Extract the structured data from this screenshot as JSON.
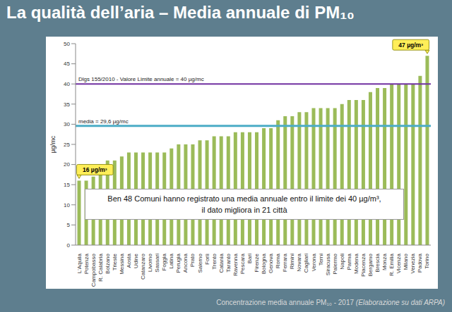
{
  "chart_data": {
    "type": "bar",
    "title": "La qualità dell’aria – Media annuale di PM₁₀",
    "categories": [
      "L'Aquila",
      "Potenza",
      "Campobasso",
      "R. Calabria",
      "Bolzano",
      "Trieste",
      "Messina",
      "Aosta",
      "Udine",
      "Catanzaro",
      "Livorno",
      "Sassari",
      "Foggia",
      "Latina",
      "Perugia",
      "Ancona",
      "Prato",
      "Salerno",
      "Forlì",
      "Trento",
      "Catania",
      "Taranto",
      "Ravenna",
      "Pescara",
      "Bari",
      "Firenze",
      "Bologna",
      "Genova",
      "Roma",
      "Ferrara",
      "Rimini",
      "Novara",
      "Cagliari",
      "Verona",
      "Terni",
      "Siracusa",
      "Palermo",
      "Napoli",
      "Parma",
      "Modena",
      "Piacenza",
      "Bergamo",
      "Brescia",
      "Monza",
      "R. Emilia",
      "Vicenza",
      "Milano",
      "Venezia",
      "Padova",
      "Torino"
    ],
    "values": [
      16,
      16,
      17,
      20,
      21,
      21,
      22,
      23,
      23,
      23,
      23,
      23,
      23,
      24,
      25,
      25,
      25,
      26,
      26,
      27,
      27,
      27,
      28,
      28,
      28,
      28,
      29,
      29,
      31,
      32,
      32,
      33,
      33,
      34,
      34,
      34,
      34,
      35,
      36,
      36,
      36,
      38,
      39,
      39,
      40,
      40,
      40,
      40,
      42,
      47
    ],
    "color": "#9bbb59",
    "ylabel": "µg/mc",
    "ylim": [
      0,
      50
    ],
    "yticks": [
      0,
      5,
      10,
      15,
      20,
      25,
      30,
      35,
      40,
      45,
      50
    ],
    "grid": false,
    "reference_lines": [
      {
        "value": 40,
        "label": "Dlgs 155/2010 - Valore Limite annuale = 40 µg/mc",
        "color": "#7030a0"
      },
      {
        "value": 29.6,
        "label": "media = 29,6 µg/mc",
        "color": "#4bacc6"
      }
    ],
    "annotations": [
      {
        "category": "L'Aquila",
        "text": "16 µg/m³"
      },
      {
        "category": "Torino",
        "text": "47 µg/m³"
      }
    ],
    "note_lines": [
      "Ben 48 Comuni hanno registrato una media annuale entro il limite dei 40 µg/m³,",
      "il dato migliora in 21 città"
    ],
    "footer": "Concentrazione media annuale PM₁₀ - 2017",
    "footer_note": "(Elaborazione su dati ARPA)"
  }
}
